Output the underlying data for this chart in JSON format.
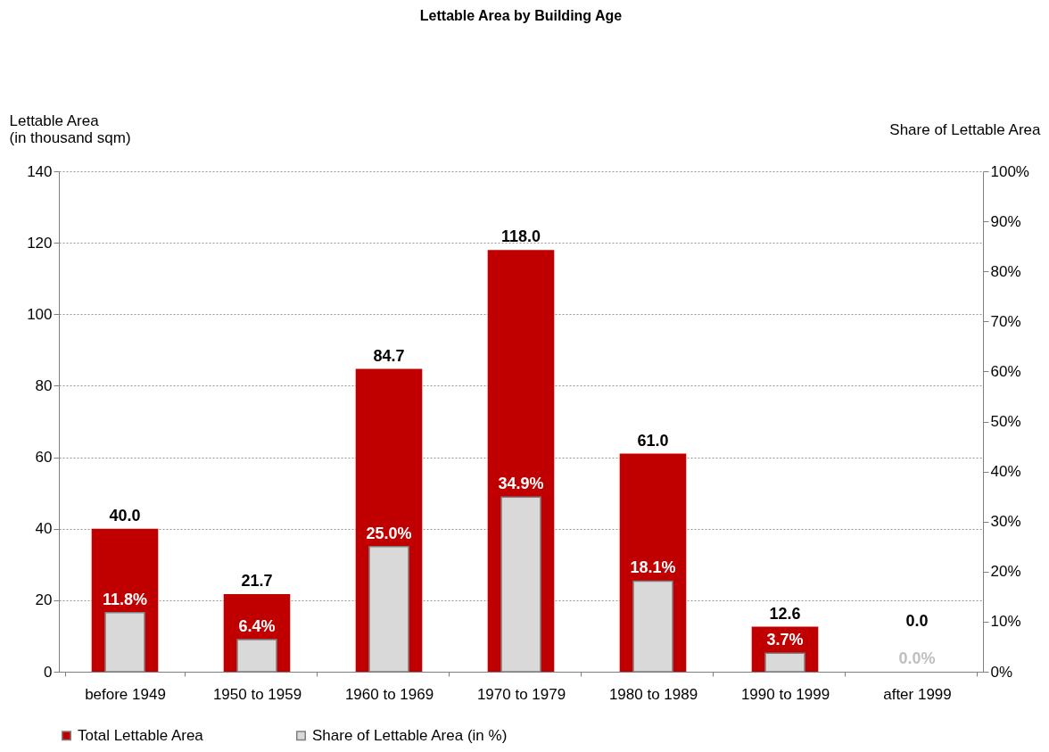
{
  "chart_data": {
    "type": "bar",
    "title": "Lettable Area by Building Age",
    "ylabel": "Lettable Area\n(in thousand sqm)",
    "y2label": "Share of Lettable Area",
    "categories": [
      "before 1949",
      "1950 to 1959",
      "1960 to 1969",
      "1970 to 1979",
      "1980 to 1989",
      "1990 to 1999",
      "after 1999"
    ],
    "series": [
      {
        "name": "Total Lettable Area",
        "color": "#c00000",
        "values": [
          40.0,
          21.7,
          84.7,
          118.0,
          61.0,
          12.6,
          0.0
        ],
        "value_labels": [
          "40.0",
          "21.7",
          "84.7",
          "118.0",
          "61.0",
          "12.6",
          "0.0"
        ]
      },
      {
        "name": "Share of Lettable Area (in %)",
        "color": "#d9d9d9",
        "axis": "y2",
        "values": [
          11.8,
          6.4,
          25.0,
          34.9,
          18.1,
          3.7,
          0.0
        ],
        "value_labels": [
          "11.8%",
          "6.4%",
          "25.0%",
          "34.9%",
          "18.1%",
          "3.7%",
          "0.0%"
        ]
      }
    ],
    "ylim": [
      0,
      140
    ],
    "yticks": [
      0,
      20,
      40,
      60,
      80,
      100,
      120,
      140
    ],
    "y2lim": [
      0,
      100
    ],
    "y2ticks": [
      {
        "value": 0,
        "label": "0%"
      },
      {
        "value": 10,
        "label": "10%"
      },
      {
        "value": 20,
        "label": "20%"
      },
      {
        "value": 30,
        "label": "30%"
      },
      {
        "value": 40,
        "label": "40%"
      },
      {
        "value": 50,
        "label": "50%"
      },
      {
        "value": 60,
        "label": "60%"
      },
      {
        "value": 70,
        "label": "70%"
      },
      {
        "value": 80,
        "label": "80%"
      },
      {
        "value": 90,
        "label": "90%"
      },
      {
        "value": 100,
        "label": "100%"
      }
    ],
    "grid": "y",
    "legend": "bottom"
  }
}
